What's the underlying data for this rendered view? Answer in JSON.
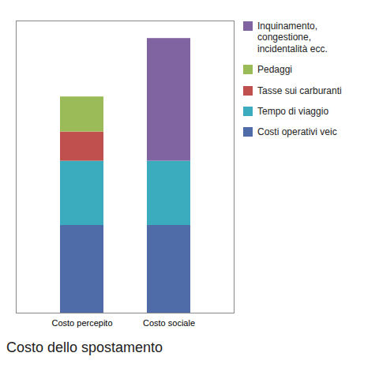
{
  "chart_data": {
    "type": "bar",
    "stacked": true,
    "title": "Costo dello spostamento",
    "categories": [
      "Costo percepito",
      "Costo sociale"
    ],
    "series": [
      {
        "name": "Costi operativi veic",
        "color": "#4F6CA8",
        "values": [
          30,
          30
        ]
      },
      {
        "name": "Tempo di viaggio",
        "color": "#3AACBE",
        "values": [
          22,
          22
        ]
      },
      {
        "name": "Tasse sui carburanti",
        "color": "#C0504D",
        "values": [
          10,
          0
        ]
      },
      {
        "name": "Pedaggi",
        "color": "#9BBB59",
        "values": [
          12,
          0
        ]
      },
      {
        "name": "Inquinamento,\ncongestione,\nincidentalità ecc.",
        "color": "#8064A2",
        "values": [
          0,
          42
        ]
      }
    ],
    "ylim": [
      0,
      100
    ],
    "grid": false,
    "legend": "right",
    "tick_labels": "x"
  }
}
